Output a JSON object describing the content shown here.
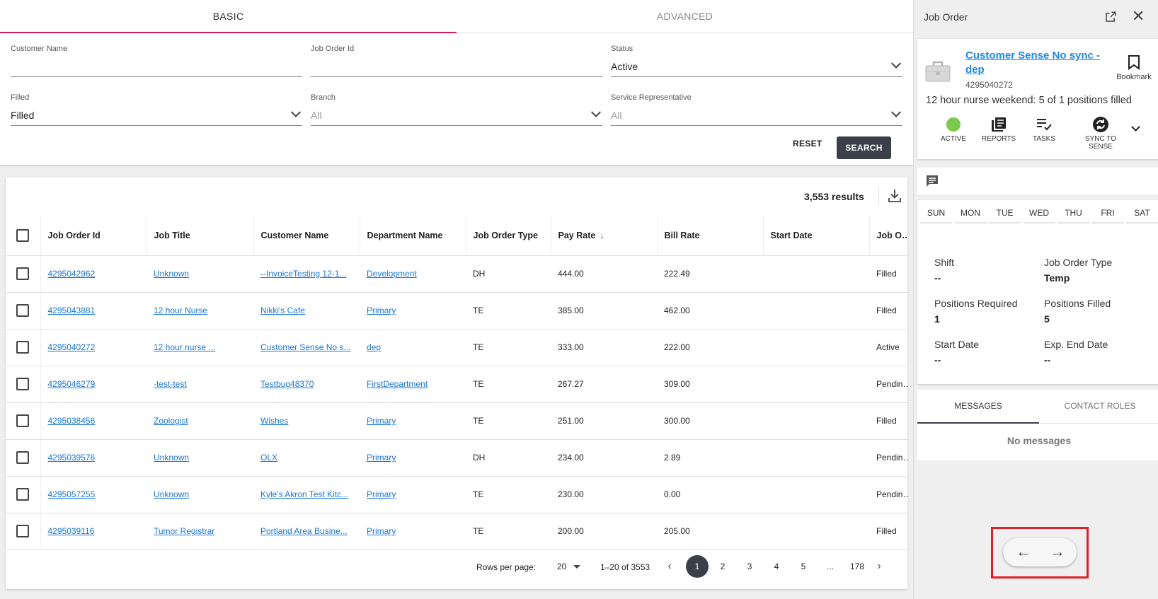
{
  "search": {
    "tabs": [
      {
        "label": "BASIC"
      },
      {
        "label": "ADVANCED"
      }
    ],
    "fields": {
      "customer_name": {
        "label": "Customer Name",
        "value": ""
      },
      "job_order_id": {
        "label": "Job Order Id",
        "value": ""
      },
      "status": {
        "label": "Status",
        "value": "Active"
      },
      "filled": {
        "label": "Filled",
        "value": "Filled"
      },
      "branch": {
        "label": "Branch",
        "value": "All"
      },
      "service_rep": {
        "label": "Service Representative",
        "value": "All"
      }
    },
    "reset_label": "RESET",
    "search_label": "SEARCH"
  },
  "results": {
    "count": "3,553 results",
    "columns": [
      "Job Order Id",
      "Job Title",
      "Customer Name",
      "Department Name",
      "Job Order Type",
      "Pay Rate",
      "Bill Rate",
      "Start Date",
      "Job Order Status"
    ],
    "sorted_column": "Pay Rate",
    "sort_direction": "descending",
    "rows": [
      {
        "id": "4295042962",
        "title": "Unknown",
        "customer": "--InvoiceTesting 12-1...",
        "dept": "Development",
        "type": "DH",
        "pay": "444.00",
        "bill": "222.49",
        "start": "",
        "status": "Filled"
      },
      {
        "id": "4295043881",
        "title": "12 hour Nurse",
        "customer": "Nikki's Cafe",
        "dept": "Primary",
        "type": "TE",
        "pay": "385.00",
        "bill": "462.00",
        "start": "",
        "status": "Filled"
      },
      {
        "id": "4295040272",
        "title": "12 hour nurse ...",
        "customer": "Customer Sense No s...",
        "dept": "dep",
        "type": "TE",
        "pay": "333.00",
        "bill": "222.00",
        "start": "",
        "status": "Active"
      },
      {
        "id": "4295046279",
        "title": "-test-test",
        "customer": "Testbug48370",
        "dept": "FirstDepartment",
        "type": "TE",
        "pay": "267.27",
        "bill": "309.00",
        "start": "",
        "status": "Pending Web"
      },
      {
        "id": "4295038456",
        "title": "Zoologist",
        "customer": "Wishes",
        "dept": "Primary",
        "type": "TE",
        "pay": "251.00",
        "bill": "300.00",
        "start": "",
        "status": "Filled"
      },
      {
        "id": "4295039576",
        "title": "Unknown",
        "customer": "OLX",
        "dept": "Primary",
        "type": "DH",
        "pay": "234.00",
        "bill": "2.89",
        "start": "",
        "status": "Pending Web"
      },
      {
        "id": "4295057255",
        "title": "Unknown",
        "customer": "Kyle's Akron Test Kitc...",
        "dept": "Primary",
        "type": "TE",
        "pay": "230.00",
        "bill": "0.00",
        "start": "",
        "status": "Pending Appr"
      },
      {
        "id": "4295039116",
        "title": "Tumor Registrar",
        "customer": "Portland Area Busine...",
        "dept": "Primary",
        "type": "TE",
        "pay": "200.00",
        "bill": "205.00",
        "start": "",
        "status": "Filled"
      }
    ],
    "pagination": {
      "rows_per_page_label": "Rows per page:",
      "rows_per_page": "20",
      "range": "1–20 of 3553",
      "pages": [
        "1",
        "2",
        "3",
        "4",
        "5",
        "...",
        "178"
      ],
      "current_page": "1"
    }
  },
  "panel": {
    "title": "Job Order",
    "job_link": "Customer Sense No sync - dep",
    "job_id": "4295040272",
    "bookmark_label": "Bookmark",
    "positions_line": "12 hour nurse weekend: 5 of 1 positions filled",
    "actions": [
      {
        "label": "ACTIVE",
        "icon": "status-dot-icon"
      },
      {
        "label": "REPORTS",
        "icon": "reports-icon"
      },
      {
        "label": "TASKS",
        "icon": "tasks-icon"
      },
      {
        "label": "SYNC TO SENSE",
        "icon": "sync-icon"
      }
    ],
    "days": [
      "SUN",
      "MON",
      "TUE",
      "WED",
      "THU",
      "FRI",
      "SAT"
    ],
    "info": {
      "shift": {
        "label": "Shift",
        "value": "--"
      },
      "job_order_type": {
        "label": "Job Order Type",
        "value": "Temp"
      },
      "positions_required": {
        "label": "Positions Required",
        "value": "1"
      },
      "positions_filled": {
        "label": "Positions Filled",
        "value": "5"
      },
      "start_date": {
        "label": "Start Date",
        "value": "--"
      },
      "exp_end_date": {
        "label": "Exp. End Date",
        "value": "--"
      }
    },
    "tabs": [
      {
        "label": "MESSAGES"
      },
      {
        "label": "CONTACT ROLES"
      }
    ],
    "no_messages": "No messages",
    "nav": {
      "prev": "←",
      "next": "→"
    }
  },
  "colors": {
    "accent": "#d81b60",
    "primary_dark": "#3a3f4a",
    "link": "#1976d2",
    "status_active": "#7cc94c",
    "highlight": "#e01f26"
  }
}
